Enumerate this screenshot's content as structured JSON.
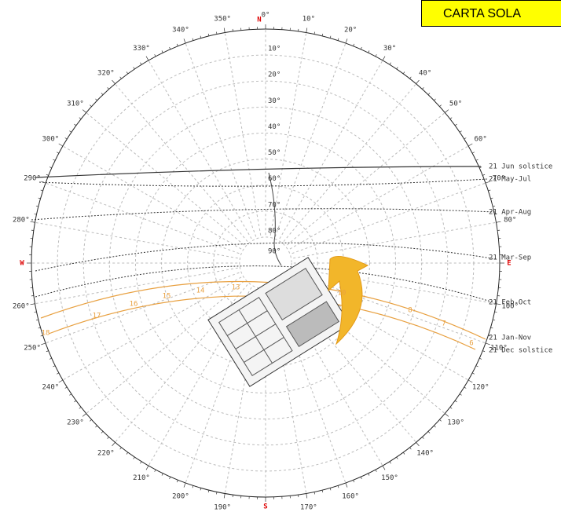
{
  "title": "CARTA SOLA",
  "compass": [
    "N",
    "E",
    "S",
    "W"
  ],
  "azimuth_labels": [
    "0°",
    "10°",
    "20°",
    "30°",
    "40°",
    "50°",
    "60°",
    "70°",
    "80°",
    null,
    "100°",
    "110°",
    "120°",
    "130°",
    "140°",
    "150°",
    "160°",
    "170°",
    null,
    "190°",
    "200°",
    "210°",
    "220°",
    "230°",
    "240°",
    "250°",
    "260°",
    null,
    "280°",
    "290°",
    "300°",
    "310°",
    "320°",
    "330°",
    "340°",
    "350°"
  ],
  "altitude_labels": [
    "10°",
    "20°",
    "30°",
    "40°",
    "50°",
    "60°",
    "70°",
    "80°",
    "90°"
  ],
  "date_curves": [
    "21 Jun  solstice",
    "21 May-Jul",
    "21 Apr-Aug",
    "21 Mar-Sep",
    "21 Feb-Oct",
    "21 Jan-Nov",
    "21 Dec  solstice"
  ],
  "hour_labels": [
    "18",
    "17",
    "16",
    "15",
    "14",
    "13",
    "10",
    "8",
    "7",
    "6"
  ]
}
